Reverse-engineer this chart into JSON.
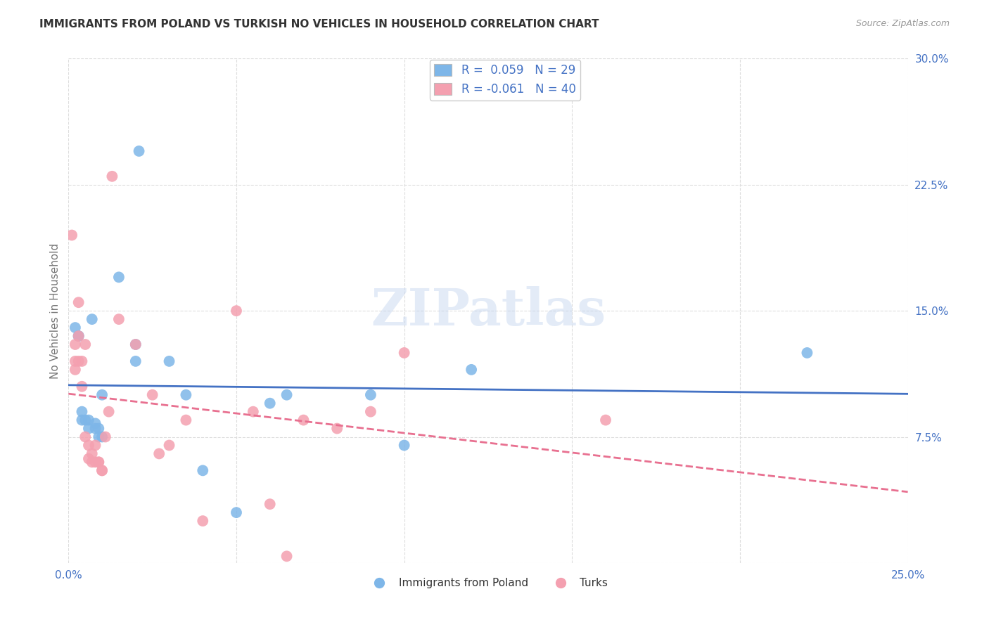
{
  "title": "IMMIGRANTS FROM POLAND VS TURKISH NO VEHICLES IN HOUSEHOLD CORRELATION CHART",
  "source": "Source: ZipAtlas.com",
  "ylabel": "No Vehicles in Household",
  "xlim": [
    0.0,
    0.25
  ],
  "ylim": [
    0.0,
    0.3
  ],
  "xticks": [
    0.0,
    0.05,
    0.1,
    0.15,
    0.2,
    0.25
  ],
  "yticks": [
    0.0,
    0.075,
    0.15,
    0.225,
    0.3
  ],
  "legend_label1": "R =  0.059   N = 29",
  "legend_label2": "R = -0.061   N = 40",
  "legend_bottom1": "Immigrants from Poland",
  "legend_bottom2": "Turks",
  "color_blue": "#7EB6E8",
  "color_pink": "#F4A0B0",
  "color_line_blue": "#4472C4",
  "color_line_pink": "#E87090",
  "color_legend_text": "#4472C4",
  "scatter_blue_x": [
    0.002,
    0.003,
    0.003,
    0.004,
    0.004,
    0.005,
    0.006,
    0.006,
    0.007,
    0.008,
    0.008,
    0.009,
    0.009,
    0.01,
    0.01,
    0.015,
    0.02,
    0.02,
    0.021,
    0.03,
    0.035,
    0.04,
    0.05,
    0.06,
    0.065,
    0.09,
    0.1,
    0.12,
    0.22
  ],
  "scatter_blue_y": [
    0.14,
    0.135,
    0.135,
    0.09,
    0.085,
    0.085,
    0.085,
    0.08,
    0.145,
    0.083,
    0.08,
    0.08,
    0.075,
    0.075,
    0.1,
    0.17,
    0.12,
    0.13,
    0.245,
    0.12,
    0.1,
    0.055,
    0.03,
    0.095,
    0.1,
    0.1,
    0.07,
    0.115,
    0.125
  ],
  "scatter_pink_x": [
    0.001,
    0.002,
    0.002,
    0.002,
    0.003,
    0.003,
    0.003,
    0.004,
    0.004,
    0.005,
    0.005,
    0.006,
    0.006,
    0.007,
    0.007,
    0.008,
    0.008,
    0.009,
    0.009,
    0.01,
    0.01,
    0.011,
    0.012,
    0.013,
    0.015,
    0.02,
    0.025,
    0.027,
    0.03,
    0.035,
    0.04,
    0.05,
    0.055,
    0.06,
    0.065,
    0.07,
    0.08,
    0.09,
    0.1,
    0.16
  ],
  "scatter_pink_y": [
    0.195,
    0.13,
    0.12,
    0.115,
    0.155,
    0.135,
    0.12,
    0.12,
    0.105,
    0.13,
    0.075,
    0.07,
    0.062,
    0.065,
    0.06,
    0.07,
    0.06,
    0.06,
    0.06,
    0.055,
    0.055,
    0.075,
    0.09,
    0.23,
    0.145,
    0.13,
    0.1,
    0.065,
    0.07,
    0.085,
    0.025,
    0.15,
    0.09,
    0.035,
    0.004,
    0.085,
    0.08,
    0.09,
    0.125,
    0.085
  ],
  "watermark": "ZIPatlas",
  "background_color": "#FFFFFF",
  "grid_color": "#DDDDDD"
}
